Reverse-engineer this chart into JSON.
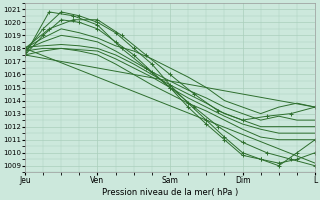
{
  "xlabel": "Pression niveau de la mer( hPa )",
  "bg_color": "#cce8dc",
  "grid_color": "#aacfbc",
  "line_color": "#2d6e2d",
  "xlim": [
    0,
    96
  ],
  "ylim": [
    1008.5,
    1021.5
  ],
  "yticks": [
    1009,
    1010,
    1011,
    1012,
    1013,
    1014,
    1015,
    1016,
    1017,
    1018,
    1019,
    1020,
    1021
  ],
  "xtick_positions": [
    0,
    24,
    48,
    72,
    96
  ],
  "xtick_labels": [
    "Jeu",
    "Ven",
    "Sam",
    "Dim",
    "L"
  ],
  "ensemble_lines": [
    {
      "x": [
        0,
        6,
        12,
        18,
        24,
        30,
        36,
        42,
        48,
        54,
        60,
        66,
        72,
        78,
        84,
        90,
        96
      ],
      "y": [
        1017.7,
        1019.5,
        1020.8,
        1020.5,
        1020.0,
        1019.2,
        1018.0,
        1016.8,
        1015.2,
        1013.8,
        1012.5,
        1011.2,
        1010.0,
        1009.5,
        1009.2,
        1009.5,
        1010.0
      ],
      "has_markers": true
    },
    {
      "x": [
        0,
        6,
        12,
        18,
        24,
        30,
        36,
        42,
        48,
        54,
        60,
        66,
        72,
        78,
        84,
        90,
        96
      ],
      "y": [
        1017.5,
        1019.0,
        1020.2,
        1020.0,
        1019.5,
        1018.5,
        1017.5,
        1016.2,
        1015.0,
        1013.5,
        1012.2,
        1011.0,
        1009.8,
        1009.5,
        1009.0,
        1010.0,
        1011.0
      ],
      "has_markers": true
    },
    {
      "x": [
        0,
        6,
        12,
        18,
        24,
        30,
        36,
        42,
        48,
        54,
        60,
        66,
        72,
        78,
        84,
        90,
        96
      ],
      "y": [
        1018.0,
        1018.8,
        1019.5,
        1019.2,
        1018.8,
        1018.2,
        1017.8,
        1017.2,
        1016.5,
        1015.8,
        1015.0,
        1014.0,
        1013.5,
        1013.0,
        1013.5,
        1013.8,
        1013.5
      ],
      "has_markers": false
    },
    {
      "x": [
        0,
        6,
        12,
        18,
        24,
        30,
        36,
        42,
        48,
        54,
        60,
        66,
        72,
        78,
        84,
        90,
        96
      ],
      "y": [
        1017.9,
        1018.5,
        1019.0,
        1018.8,
        1018.5,
        1017.8,
        1017.0,
        1016.2,
        1015.5,
        1014.8,
        1014.2,
        1013.5,
        1013.0,
        1012.5,
        1012.8,
        1012.5,
        1012.5
      ],
      "has_markers": false
    },
    {
      "x": [
        0,
        6,
        12,
        18,
        24,
        30,
        36,
        42,
        48,
        54,
        60,
        66,
        72,
        78,
        84,
        90,
        96
      ],
      "y": [
        1018.1,
        1018.2,
        1018.3,
        1018.2,
        1018.0,
        1017.5,
        1016.8,
        1016.0,
        1015.2,
        1014.5,
        1013.8,
        1013.0,
        1012.5,
        1012.0,
        1012.0,
        1012.0,
        1012.0
      ],
      "has_markers": false
    },
    {
      "x": [
        0,
        6,
        12,
        18,
        24,
        30,
        36,
        42,
        48,
        54,
        60,
        66,
        72,
        78,
        84,
        90,
        96
      ],
      "y": [
        1017.8,
        1018.0,
        1018.0,
        1017.9,
        1017.8,
        1017.2,
        1016.5,
        1015.8,
        1015.0,
        1014.2,
        1013.5,
        1012.8,
        1012.2,
        1011.8,
        1011.5,
        1011.5,
        1011.5
      ],
      "has_markers": false
    },
    {
      "x": [
        0,
        6,
        12,
        18,
        24,
        30,
        36,
        42,
        48,
        54,
        60,
        66,
        72,
        78,
        84,
        90,
        96
      ],
      "y": [
        1017.5,
        1017.8,
        1018.0,
        1017.8,
        1017.5,
        1016.8,
        1016.0,
        1015.2,
        1014.5,
        1013.8,
        1013.2,
        1012.5,
        1011.8,
        1011.2,
        1011.0,
        1011.0,
        1011.0
      ],
      "has_markers": false
    },
    {
      "x": [
        0,
        8,
        16,
        24,
        32,
        40,
        48,
        56,
        64,
        72,
        80,
        88,
        96
      ],
      "y": [
        1017.5,
        1020.8,
        1020.5,
        1019.8,
        1018.0,
        1016.5,
        1015.0,
        1013.5,
        1012.0,
        1010.8,
        1010.0,
        1009.5,
        1009.0
      ],
      "has_markers": true
    },
    {
      "x": [
        0,
        8,
        16,
        24,
        32,
        40,
        48,
        56,
        64,
        72,
        80,
        88,
        96
      ],
      "y": [
        1018.0,
        1019.5,
        1020.2,
        1020.2,
        1019.0,
        1017.5,
        1016.0,
        1014.5,
        1013.2,
        1012.5,
        1012.8,
        1013.0,
        1013.5
      ],
      "has_markers": true
    },
    {
      "x": [
        0,
        96
      ],
      "y": [
        1018.0,
        1009.2
      ],
      "has_markers": false
    },
    {
      "x": [
        0,
        96
      ],
      "y": [
        1017.5,
        1013.5
      ],
      "has_markers": false
    }
  ]
}
